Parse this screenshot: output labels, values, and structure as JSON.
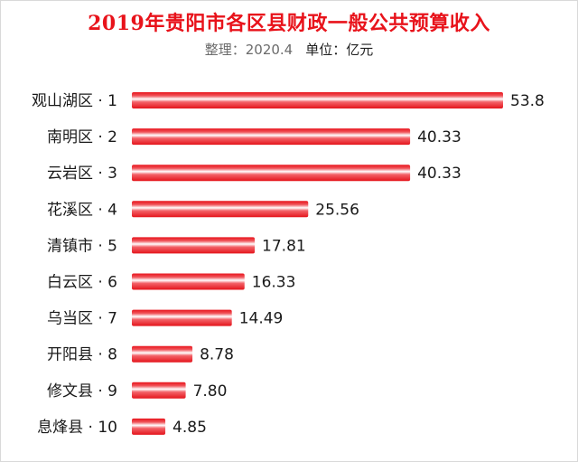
{
  "header": {
    "title": "2019年贵阳市各区县财政一般公共预算收入",
    "source": "整理：2020.4",
    "unit": "单位：亿元"
  },
  "chart_data": {
    "type": "bar",
    "orientation": "horizontal",
    "title": "2019年贵阳市各区县财政一般公共预算收入",
    "categories": [
      "观山湖区 · 1",
      "南明区 · 2",
      "云岩区 · 3",
      "花溪区 · 4",
      "清镇市 · 5",
      "白云区 · 6",
      "乌当区 · 7",
      "开阳县 · 8",
      "修文县 · 9",
      "息烽县 · 10"
    ],
    "values": [
      53.8,
      40.33,
      40.33,
      25.56,
      17.81,
      16.33,
      14.49,
      8.78,
      7.8,
      4.85
    ],
    "value_labels": [
      "53.8",
      "40.33",
      "40.33",
      "25.56",
      "17.81",
      "16.33",
      "14.49",
      "8.78",
      "7.80",
      "4.85"
    ],
    "xlim": [
      0,
      53.8
    ],
    "grid": false,
    "legend": "none",
    "colors": {
      "bar": "#e8131b",
      "bar_highlight": "#ffffff",
      "title": "#e8131b"
    }
  }
}
